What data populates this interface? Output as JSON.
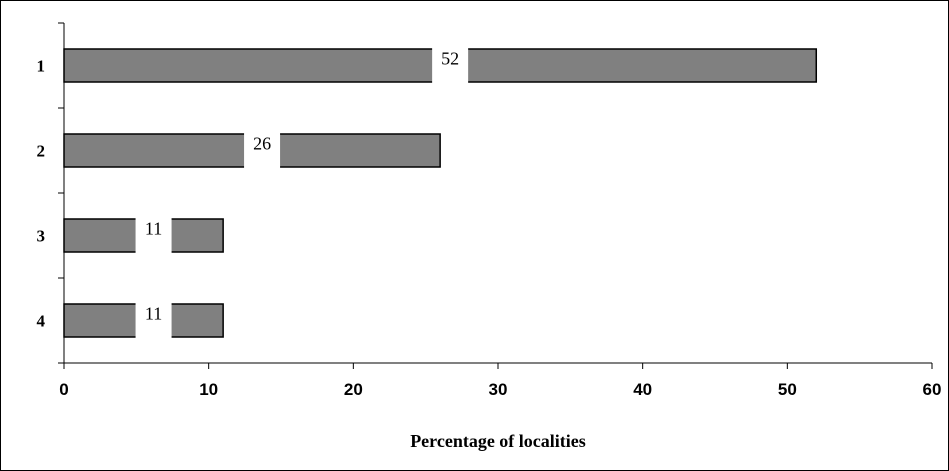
{
  "chart_data": {
    "type": "bar",
    "orientation": "horizontal",
    "categories": [
      "1",
      "2",
      "3",
      "4"
    ],
    "values": [
      52,
      26,
      11,
      11
    ],
    "data_labels": [
      "52",
      "26",
      "11",
      "11"
    ],
    "title": "",
    "xlabel": "Percentage of localities",
    "ylabel": "",
    "xlim": [
      0,
      60
    ],
    "x_ticks": [
      0,
      10,
      20,
      30,
      40,
      50,
      60
    ],
    "x_tick_labels": [
      "0",
      "10",
      "20",
      "30",
      "40",
      "50",
      "60"
    ],
    "grid": false,
    "legend": "none",
    "bar_color": "#808080",
    "bar_edge_color": "#000000"
  }
}
